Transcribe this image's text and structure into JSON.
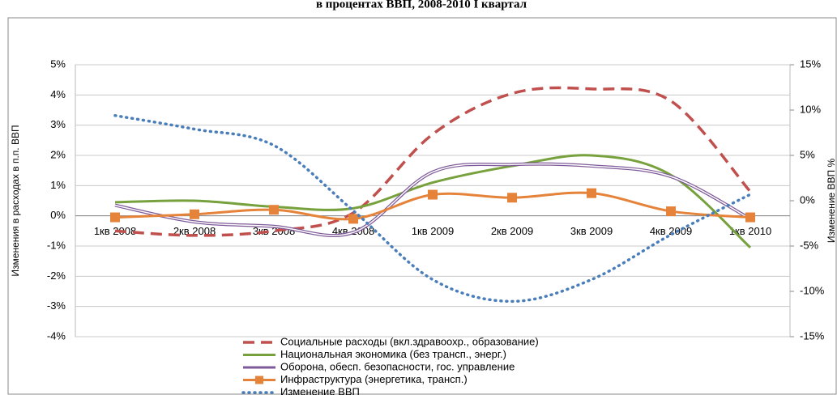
{
  "chart_data": {
    "type": "line",
    "title": "в процентах ВВП, 2008-2010 I квартал",
    "y_label": "Изменения в расходах в п.п. ВВП",
    "y2_label": "Изменение ВВП %",
    "categories": [
      "1кв 2008",
      "2кв 2008",
      "3кв 2008",
      "4кв 2008",
      "1кв 2009",
      "2кв 2009",
      "3кв 2009",
      "4кв 2009",
      "1кв 2010"
    ],
    "ylim": [
      -4,
      5
    ],
    "yticks": [
      {
        "value": -4,
        "label": "-4%"
      },
      {
        "value": -3,
        "label": "-3%"
      },
      {
        "value": -2,
        "label": "-2%"
      },
      {
        "value": -1,
        "label": "-1%"
      },
      {
        "value": 0,
        "label": "0%"
      },
      {
        "value": 1,
        "label": "1%"
      },
      {
        "value": 2,
        "label": "2%"
      },
      {
        "value": 3,
        "label": "3%"
      },
      {
        "value": 4,
        "label": "4%"
      },
      {
        "value": 5,
        "label": "5%"
      }
    ],
    "y2lim": [
      -15,
      15
    ],
    "y2ticks": [
      {
        "value": -15,
        "label": "-15%"
      },
      {
        "value": -10,
        "label": "-10%"
      },
      {
        "value": -5,
        "label": "-5%"
      },
      {
        "value": 0,
        "label": "0%"
      },
      {
        "value": 5,
        "label": "5%"
      },
      {
        "value": 10,
        "label": "10%"
      },
      {
        "value": 15,
        "label": "15%"
      }
    ],
    "grid": true,
    "series": [
      {
        "name": "Социальные расходы (вкл.здравоохр., образование)",
        "color": "#c0504d",
        "style": "dashed",
        "values": [
          -0.5,
          -0.65,
          -0.5,
          0.1,
          2.7,
          4.05,
          4.2,
          3.8,
          0.8
        ]
      },
      {
        "name": "Национальная экономика (без трансп., энерг.)",
        "color": "#77a13d",
        "style": "solid",
        "values": [
          0.45,
          0.5,
          0.3,
          0.25,
          1.1,
          1.65,
          2.0,
          1.35,
          -1.05
        ]
      },
      {
        "name": "Оборона, обесп. безопасности, гос. управление",
        "color": "#7f5a99",
        "style": "double",
        "values": [
          0.35,
          -0.2,
          -0.35,
          -0.55,
          1.45,
          1.7,
          1.65,
          1.3,
          -0.1
        ]
      },
      {
        "name": "Инфраструктура (энергетика, трансп.)",
        "color": "#e5833a",
        "style": "marker",
        "values": [
          -0.05,
          0.05,
          0.2,
          -0.1,
          0.7,
          0.6,
          0.75,
          0.15,
          -0.05
        ]
      },
      {
        "name": "Изменение ВВП",
        "color": "#4a7ebb",
        "style": "dotted",
        "axis": "y2",
        "values": [
          9.4,
          7.9,
          6.1,
          -1.1,
          -8.7,
          -11.1,
          -8.7,
          -3.75,
          0.7
        ]
      }
    ]
  }
}
